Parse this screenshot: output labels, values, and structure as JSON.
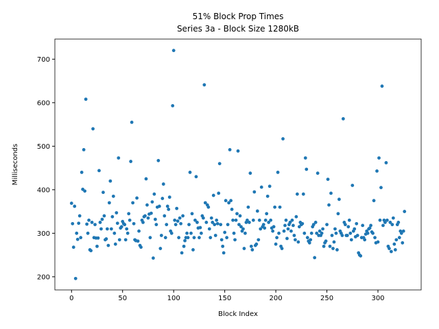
{
  "chart_data": {
    "type": "scatter",
    "title": "51% Block Prop Times",
    "subtitle": "Series 3a - Block Size 1280kB",
    "x_label": "Block Index",
    "y_label": "Milliseconds",
    "color": "#1f77b4",
    "xlim": [
      -16.3,
      342.3
    ],
    "ylim": [
      169.8,
      746.2
    ],
    "xticks": [
      0,
      50,
      100,
      150,
      200,
      250,
      300
    ],
    "yticks": [
      200,
      300,
      400,
      500,
      600,
      700
    ],
    "grid": false,
    "x": [
      0,
      1,
      2,
      3,
      4,
      5,
      6,
      7,
      8,
      9,
      10,
      11,
      12,
      13,
      14,
      15,
      16,
      17,
      18,
      19,
      20,
      21,
      22,
      23,
      24,
      25,
      26,
      27,
      28,
      29,
      30,
      31,
      32,
      33,
      34,
      35,
      36,
      37,
      38,
      39,
      40,
      41,
      42,
      43,
      44,
      45,
      46,
      47,
      48,
      49,
      50,
      51,
      52,
      53,
      54,
      55,
      56,
      57,
      58,
      59,
      60,
      61,
      62,
      63,
      64,
      65,
      66,
      67,
      68,
      69,
      70,
      71,
      72,
      73,
      74,
      75,
      76,
      77,
      78,
      79,
      80,
      81,
      82,
      83,
      84,
      85,
      86,
      87,
      88,
      89,
      90,
      91,
      92,
      93,
      94,
      95,
      96,
      97,
      98,
      99,
      100,
      101,
      102,
      103,
      104,
      105,
      106,
      107,
      108,
      109,
      110,
      111,
      112,
      113,
      114,
      115,
      116,
      117,
      118,
      119,
      120,
      121,
      122,
      123,
      124,
      125,
      126,
      127,
      128,
      129,
      130,
      131,
      132,
      133,
      134,
      135,
      136,
      137,
      138,
      139,
      140,
      141,
      142,
      143,
      144,
      145,
      146,
      147,
      148,
      149,
      150,
      151,
      152,
      153,
      154,
      155,
      156,
      157,
      158,
      159,
      160,
      161,
      162,
      163,
      164,
      165,
      166,
      167,
      168,
      169,
      170,
      171,
      172,
      173,
      174,
      175,
      176,
      177,
      178,
      179,
      180,
      181,
      182,
      183,
      184,
      185,
      186,
      187,
      188,
      189,
      190,
      191,
      192,
      193,
      194,
      195,
      196,
      197,
      198,
      199,
      200,
      201,
      202,
      203,
      204,
      205,
      206,
      207,
      208,
      209,
      210,
      211,
      212,
      213,
      214,
      215,
      216,
      217,
      218,
      219,
      220,
      221,
      222,
      223,
      224,
      225,
      226,
      227,
      228,
      229,
      230,
      231,
      232,
      233,
      234,
      235,
      236,
      237,
      238,
      239,
      240,
      241,
      242,
      243,
      244,
      245,
      246,
      247,
      248,
      249,
      250,
      251,
      252,
      253,
      254,
      255,
      256,
      257,
      258,
      259,
      260,
      261,
      262,
      263,
      264,
      265,
      266,
      267,
      268,
      269,
      270,
      271,
      272,
      273,
      274,
      275,
      276,
      277,
      278,
      279,
      280,
      281,
      282,
      283,
      284,
      285,
      286,
      287,
      288,
      289,
      290,
      291,
      292,
      293,
      294,
      295,
      296,
      297,
      298,
      299,
      300,
      301,
      302,
      303,
      304,
      305,
      306,
      307,
      308,
      309,
      310,
      311,
      312,
      313,
      314,
      315,
      316,
      317,
      318,
      319,
      320,
      321,
      322,
      323,
      324,
      325,
      326
    ],
    "values": [
      369,
      322,
      268,
      362,
      196,
      300,
      286,
      323,
      340,
      290,
      440,
      401,
      492,
      397,
      608,
      321,
      300,
      330,
      262,
      260,
      325,
      540,
      290,
      320,
      289,
      270,
      289,
      444,
      325,
      310,
      332,
      394,
      340,
      285,
      287,
      310,
      272,
      370,
      420,
      310,
      338,
      385,
      300,
      275,
      347,
      323,
      473,
      285,
      312,
      315,
      327,
      322,
      320,
      285,
      310,
      300,
      345,
      330,
      465,
      555,
      370,
      322,
      285,
      283,
      381,
      282,
      305,
      272,
      268,
      330,
      325,
      338,
      340,
      425,
      365,
      335,
      344,
      290,
      346,
      372,
      243,
      390,
      332,
      320,
      360,
      467,
      362,
      265,
      295,
      380,
      413,
      340,
      290,
      320,
      362,
      355,
      383,
      305,
      300,
      593,
      720,
      330,
      320,
      357,
      328,
      290,
      335,
      322,
      255,
      340,
      270,
      283,
      290,
      300,
      290,
      320,
      440,
      300,
      345,
      262,
      290,
      330,
      430,
      325,
      312,
      290,
      313,
      300,
      340,
      335,
      641,
      370,
      325,
      365,
      360,
      310,
      290,
      335,
      325,
      387,
      320,
      295,
      330,
      322,
      392,
      460,
      320,
      285,
      270,
      255,
      302,
      375,
      290,
      320,
      370,
      492,
      375,
      355,
      330,
      300,
      285,
      330,
      345,
      489,
      320,
      340,
      315,
      305,
      310,
      265,
      300,
      325,
      330,
      360,
      325,
      438,
      270,
      262,
      330,
      395,
      272,
      275,
      351,
      285,
      330,
      310,
      406,
      315,
      320,
      312,
      330,
      345,
      385,
      325,
      408,
      330,
      312,
      305,
      315,
      360,
      275,
      290,
      440,
      300,
      360,
      270,
      265,
      517,
      305,
      318,
      330,
      288,
      310,
      320,
      325,
      305,
      330,
      318,
      295,
      285,
      338,
      390,
      280,
      315,
      325,
      320,
      322,
      390,
      300,
      473,
      447,
      290,
      282,
      278,
      285,
      300,
      315,
      320,
      244,
      325,
      300,
      438,
      295,
      305,
      295,
      300,
      310,
      270,
      278,
      282,
      320,
      424,
      365,
      270,
      392,
      295,
      265,
      280,
      310,
      300,
      262,
      345,
      378,
      305,
      300,
      295,
      563,
      325,
      320,
      295,
      295,
      315,
      330,
      300,
      285,
      410,
      305,
      310,
      292,
      322,
      295,
      255,
      250,
      248,
      290,
      318,
      290,
      285,
      298,
      305,
      300,
      310,
      312,
      318,
      303,
      300,
      375,
      290,
      278,
      443,
      280,
      473,
      330,
      405,
      638,
      318,
      330,
      325,
      462,
      330,
      270,
      265,
      325,
      258,
      320,
      335,
      275,
      262,
      285,
      320,
      325,
      290,
      305,
      300,
      278,
      305,
      350
    ]
  }
}
